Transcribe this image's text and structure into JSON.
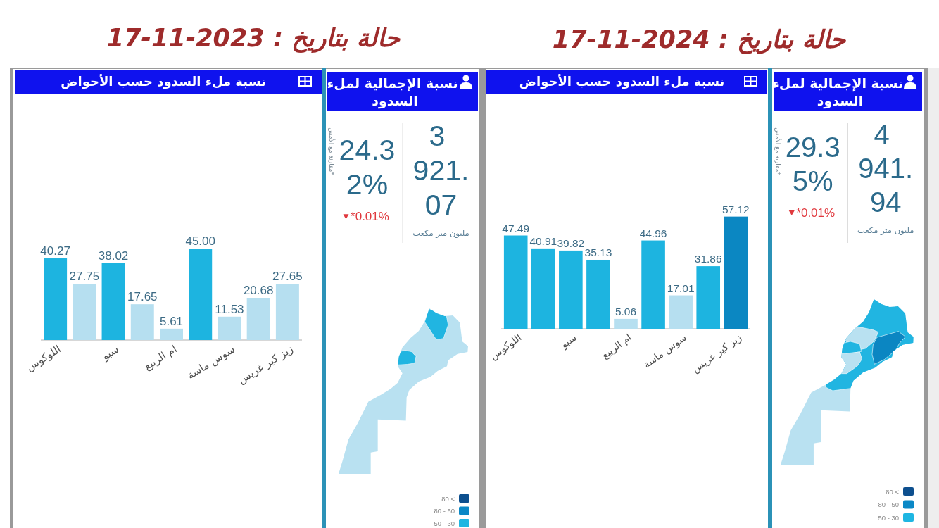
{
  "chart_data": [
    {
      "type": "bar",
      "title": "نسبة ملء السدود حسب الأحواض",
      "annotations": [
        "حالة بتاريخ : 17-11-2023"
      ],
      "categories": [
        "اللوكوس",
        null,
        "سبو",
        null,
        "ام الربيع",
        null,
        "سوس ماسة",
        null,
        "زيز كير غريس"
      ],
      "values": [
        40.27,
        27.75,
        38.02,
        17.65,
        5.61,
        45.0,
        11.53,
        20.68,
        27.65
      ],
      "value_labels": [
        "40.27",
        "27.75",
        "38.02",
        "17.65",
        "5.61",
        "45.00",
        "11.53",
        "20.68",
        "27.65"
      ],
      "colors": [
        "#1db4e0",
        "#b6dff0",
        "#1db4e0",
        "#b6dff0",
        "#b6dff0",
        "#1db4e0",
        "#b6dff0",
        "#b6dff0",
        "#b6dff0"
      ]
    },
    {
      "type": "other",
      "title": "نسبة الإجمالية لملء السدود",
      "annotations": [
        "3 921.07",
        "مليون متر مكعب",
        "24.32%",
        "*0.01%",
        "*مقارنة مع الأمس"
      ]
    },
    {
      "type": "other",
      "categories": [
        "80 <",
        "80 - 50",
        "50 - 30"
      ],
      "colors": [
        "#0d4f8e",
        "#0b88c6",
        "#1eb6e2"
      ]
    },
    {
      "type": "bar",
      "title": "نسبة ملء السدود حسب الأحواض",
      "annotations": [
        "حالة بتاريخ : 17-11-2024"
      ],
      "categories": [
        "اللوكوس",
        null,
        "سبو",
        null,
        "ام الربيع",
        null,
        "سوس ماسة",
        null,
        "زيز كير غريس"
      ],
      "values": [
        47.49,
        40.91,
        39.82,
        35.13,
        5.06,
        44.96,
        17.01,
        31.86,
        57.12
      ],
      "value_labels": [
        "47.49",
        "40.91",
        "39.82",
        "35.13",
        "5.06",
        "44.96",
        "17.01",
        "31.86",
        "57.12"
      ],
      "colors": [
        "#1db4e0",
        "#1db4e0",
        "#1db4e0",
        "#1db4e0",
        "#b6dff0",
        "#1db4e0",
        "#b6dff0",
        "#1db4e0",
        "#0b87c2"
      ]
    },
    {
      "type": "other",
      "title": "نسبة الإجمالية لملء السدود",
      "annotations": [
        "4 941.94",
        "مليون متر مكعب",
        "29.35%",
        "*0.01%",
        "*مقارنة مع الأمس"
      ]
    },
    {
      "type": "other",
      "categories": [
        "80 <",
        "80 - 50",
        "50 - 30"
      ],
      "colors": [
        "#0d4f8e",
        "#0b88c6",
        "#1eb6e2"
      ]
    }
  ]
}
